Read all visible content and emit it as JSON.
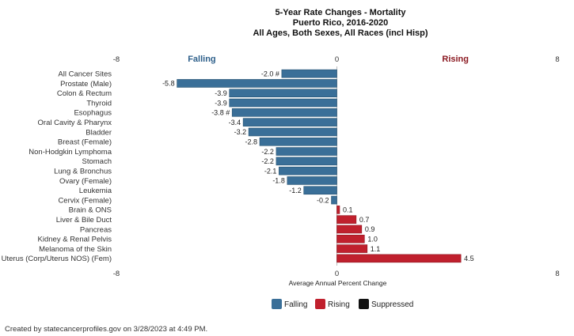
{
  "chart_data": {
    "type": "bar",
    "orientation": "horizontal",
    "title_lines": [
      "5-Year Rate Changes - Mortality",
      "Puerto Rico, 2016-2020",
      "All Ages, Both Sexes, All Races (incl Hisp)"
    ],
    "xlabel": "Average Annual Percent Change",
    "xlim": [
      -8,
      8
    ],
    "ticks": [
      "-8",
      "0",
      "8"
    ],
    "side_labels": {
      "falling": "Falling",
      "rising": "Rising"
    },
    "categories": [
      "All Cancer Sites",
      "Prostate (Male)",
      "Colon & Rectum",
      "Thyroid",
      "Esophagus",
      "Oral Cavity & Pharynx",
      "Bladder",
      "Breast (Female)",
      "Non-Hodgkin Lymphoma",
      "Stomach",
      "Lung & Bronchus",
      "Ovary (Female)",
      "Leukemia",
      "Cervix (Female)",
      "Brain & ONS",
      "Liver & Bile Duct",
      "Pancreas",
      "Kidney & Renal Pelvis",
      "Melanoma of the Skin",
      "Uterus (Corp/Uterus NOS) (Fem)"
    ],
    "values": [
      -2.0,
      -5.8,
      -3.9,
      -3.9,
      -3.8,
      -3.4,
      -3.2,
      -2.8,
      -2.2,
      -2.2,
      -2.1,
      -1.8,
      -1.2,
      -0.2,
      0.1,
      0.7,
      0.9,
      1.0,
      1.1,
      4.5
    ],
    "value_labels": [
      "-2.0 #",
      "-5.8",
      "-3.9",
      "-3.9",
      "-3.8 #",
      "-3.4",
      "-3.2",
      "-2.8",
      "-2.2",
      "-2.2",
      "-2.1",
      "-1.8",
      "-1.2",
      "-0.2",
      "0.1",
      "0.7",
      "0.9",
      "1.0",
      "1.1",
      "4.5"
    ],
    "colors": {
      "falling": "#3a6f98",
      "rising": "#c0202d",
      "suppressed": "#111111"
    },
    "legend": [
      {
        "label": "Falling",
        "color": "#3a6f98"
      },
      {
        "label": "Rising",
        "color": "#c0202d"
      },
      {
        "label": "Suppressed",
        "color": "#111111"
      }
    ],
    "legend_position": "bottom",
    "grid": false
  },
  "footer": "Created by statecancerprofiles.gov on 3/28/2023 at 4:49 PM."
}
